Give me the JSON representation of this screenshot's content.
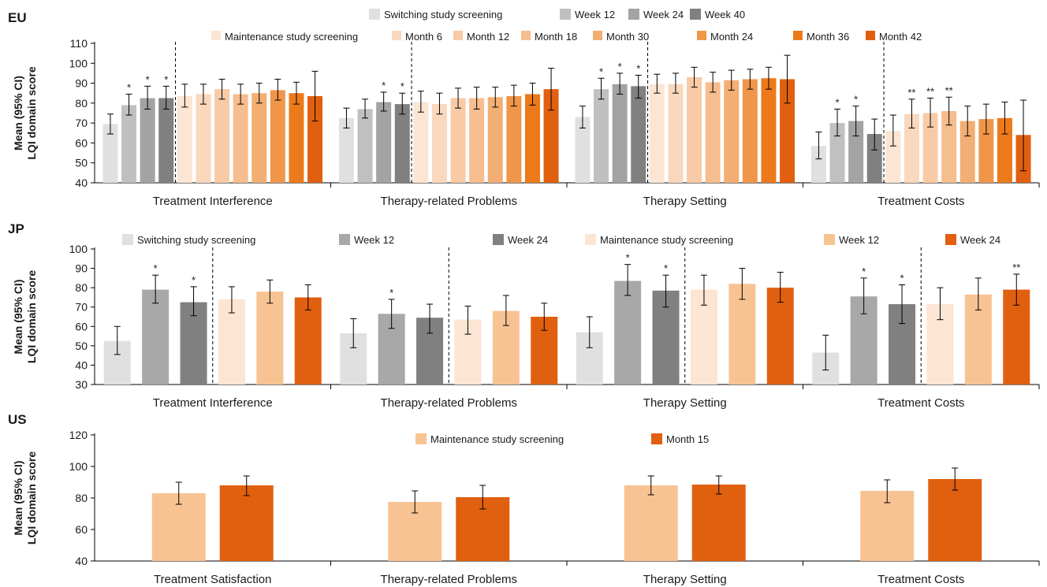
{
  "chart_data": [
    {
      "type": "bar",
      "region": "EU",
      "ylabel": [
        "Mean (95% CI)",
        "LQI domain score"
      ],
      "ylim": [
        40,
        110
      ],
      "yticks": [
        40,
        50,
        60,
        70,
        80,
        90,
        100,
        110
      ],
      "categories": [
        "Treatment Interference",
        "Therapy-related Problems",
        "Therapy Setting",
        "Treatment Costs"
      ],
      "legend_rows": [
        [
          "Switching study screening",
          "Week 12",
          "Week 24",
          "Week 40"
        ],
        [
          "Maintenance study screening",
          "Month 6",
          "Month 12",
          "Month 18",
          "Month 30",
          "Month 24",
          "Month 36",
          "Month 42"
        ]
      ],
      "split_after": 4,
      "series": [
        {
          "name": "Switching study screening",
          "color": "#e0e0e0",
          "values": [
            69.5,
            72.5,
            73,
            58.5
          ],
          "ci": [
            [
              64.5,
              74.5
            ],
            [
              67.5,
              77.5
            ],
            [
              67.5,
              78.5
            ],
            [
              52,
              65.5
            ]
          ],
          "stars": [
            "",
            "",
            "",
            ""
          ]
        },
        {
          "name": "Week 12",
          "color": "#c0c0c0",
          "values": [
            79,
            77,
            87,
            70
          ],
          "ci": [
            [
              74,
              84.5
            ],
            [
              72.5,
              82
            ],
            [
              82,
              92.5
            ],
            [
              63.5,
              77
            ]
          ],
          "stars": [
            "*",
            "",
            "*",
            "*"
          ]
        },
        {
          "name": "Week 24",
          "color": "#a3a3a3",
          "values": [
            82.5,
            80.5,
            89.5,
            71
          ],
          "ci": [
            [
              77,
              88.5
            ],
            [
              76,
              85.5
            ],
            [
              84.5,
              95
            ],
            [
              63.5,
              78.5
            ]
          ],
          "stars": [
            "*",
            "*",
            "*",
            "*"
          ]
        },
        {
          "name": "Week 40",
          "color": "#808080",
          "values": [
            82.5,
            79.5,
            88.5,
            64.5
          ],
          "ci": [
            [
              77,
              88.5
            ],
            [
              74.5,
              85
            ],
            [
              82.5,
              94
            ],
            [
              56.5,
              72
            ]
          ],
          "stars": [
            "*",
            "*",
            "*",
            ""
          ]
        },
        {
          "name": "Maintenance study screening",
          "color": "#fce5d2",
          "values": [
            83.5,
            80.5,
            89.5,
            66
          ],
          "ci": [
            [
              78,
              89.5
            ],
            [
              75.5,
              86
            ],
            [
              85,
              94.5
            ],
            [
              58.5,
              74
            ]
          ],
          "stars": [
            "",
            "",
            "",
            ""
          ]
        },
        {
          "name": "Month 6",
          "color": "#fad8bd",
          "values": [
            84.5,
            79.5,
            89.5,
            74.5
          ],
          "ci": [
            [
              79.5,
              89.5
            ],
            [
              74.5,
              85
            ],
            [
              85,
              95
            ],
            [
              67.5,
              82
            ]
          ],
          "stars": [
            "",
            "",
            "",
            "**"
          ]
        },
        {
          "name": "Month 12",
          "color": "#f8cba6",
          "values": [
            87,
            82.5,
            93,
            75
          ],
          "ci": [
            [
              82,
              92
            ],
            [
              77.5,
              87.5
            ],
            [
              88,
              98
            ],
            [
              68,
              82.5
            ]
          ],
          "stars": [
            "",
            "",
            "",
            "**"
          ]
        },
        {
          "name": "Month 18",
          "color": "#f6bd8e",
          "values": [
            84.5,
            82.5,
            90.5,
            76
          ],
          "ci": [
            [
              79.5,
              89.5
            ],
            [
              77,
              88
            ],
            [
              85.5,
              95.5
            ],
            [
              69,
              83
            ]
          ],
          "stars": [
            "",
            "",
            "",
            "**"
          ]
        },
        {
          "name": "Month 30",
          "color": "#f3ae74",
          "values": [
            85,
            83,
            91.5,
            71
          ],
          "ci": [
            [
              80,
              90
            ],
            [
              78,
              88
            ],
            [
              86.5,
              96.5
            ],
            [
              63.5,
              78.5
            ]
          ],
          "stars": [
            "",
            "",
            "",
            ""
          ]
        },
        {
          "name": "Month 24",
          "color": "#f0964a",
          "values": [
            86.5,
            83.5,
            92,
            72
          ],
          "ci": [
            [
              81.5,
              92
            ],
            [
              78.5,
              89
            ],
            [
              87,
              97
            ],
            [
              64.5,
              79.5
            ]
          ],
          "stars": [
            "",
            "",
            "",
            ""
          ]
        },
        {
          "name": "Month 36",
          "color": "#ec7a1a",
          "values": [
            85,
            84.5,
            92.5,
            72.5
          ],
          "ci": [
            [
              79.5,
              90.5
            ],
            [
              79,
              90
            ],
            [
              87,
              98
            ],
            [
              64.5,
              80.5
            ]
          ],
          "stars": [
            "",
            "",
            "",
            ""
          ]
        },
        {
          "name": "Month 42",
          "color": "#e06010",
          "values": [
            83.5,
            87,
            92,
            64
          ],
          "ci": [
            [
              71,
              96
            ],
            [
              76.5,
              97.5
            ],
            [
              80,
              104
            ],
            [
              46,
              81.5
            ]
          ],
          "stars": [
            "",
            "",
            "",
            ""
          ]
        }
      ]
    },
    {
      "type": "bar",
      "region": "JP",
      "ylabel": [
        "Mean (95% CI)",
        "LQI domain score"
      ],
      "ylim": [
        30,
        100
      ],
      "yticks": [
        30,
        40,
        50,
        60,
        70,
        80,
        90,
        100
      ],
      "categories": [
        "Treatment Interference",
        "Therapy-related Problems",
        "Therapy Setting",
        "Treatment Costs"
      ],
      "legend_rows": [
        [
          "Switching study screening",
          "Week 12",
          "Week 24",
          "Maintenance study  screening",
          "Week 12",
          "Week 24"
        ]
      ],
      "split_after": 3,
      "series": [
        {
          "name": "Switching study screening",
          "color": "#e0e0e0",
          "values": [
            52.5,
            56.5,
            57,
            46.5
          ],
          "ci": [
            [
              45.5,
              60
            ],
            [
              49,
              64
            ],
            [
              49,
              65
            ],
            [
              37.5,
              55.5
            ]
          ],
          "stars": [
            "",
            "",
            "",
            ""
          ]
        },
        {
          "name": "Week 12",
          "color": "#a8a8a8",
          "values": [
            79,
            66.5,
            83.5,
            75.5
          ],
          "ci": [
            [
              72,
              86.5
            ],
            [
              59,
              74
            ],
            [
              76,
              92
            ],
            [
              66.5,
              85
            ]
          ],
          "stars": [
            "*",
            "*",
            "*",
            "*"
          ]
        },
        {
          "name": "Week 24",
          "color": "#808080",
          "values": [
            72.5,
            64.5,
            78.5,
            71.5
          ],
          "ci": [
            [
              65.5,
              80.5
            ],
            [
              56.5,
              71.5
            ],
            [
              70,
              86.5
            ],
            [
              61.5,
              81.5
            ]
          ],
          "stars": [
            "*",
            "",
            "*",
            "*"
          ]
        },
        {
          "name": "Maintenance study  screening",
          "color": "#fce5d2",
          "values": [
            74,
            63.5,
            79,
            71.5
          ],
          "ci": [
            [
              67,
              80.5
            ],
            [
              56,
              70.5
            ],
            [
              71,
              86.5
            ],
            [
              63.5,
              80
            ]
          ],
          "stars": [
            "",
            "",
            "",
            ""
          ]
        },
        {
          "name": "Week 12",
          "color": "#f8c393",
          "values": [
            78,
            68,
            82,
            76.5
          ],
          "ci": [
            [
              72,
              84
            ],
            [
              60.5,
              76
            ],
            [
              74,
              90
            ],
            [
              68.5,
              85
            ]
          ],
          "stars": [
            "",
            "",
            "",
            ""
          ]
        },
        {
          "name": "Week 24",
          "color": "#e06010",
          "values": [
            75,
            65,
            80,
            79
          ],
          "ci": [
            [
              68.5,
              81.5
            ],
            [
              58,
              72
            ],
            [
              72.5,
              88
            ],
            [
              71,
              87
            ]
          ],
          "stars": [
            "",
            "",
            "",
            "**"
          ]
        }
      ]
    },
    {
      "type": "bar",
      "region": "US",
      "ylabel": [
        "Mean (95% CI)",
        "LQI domain score"
      ],
      "ylim": [
        40,
        120
      ],
      "yticks": [
        40,
        60,
        80,
        100,
        120
      ],
      "categories": [
        "Treatment Satisfaction",
        "Therapy-related Problems",
        "Therapy Setting",
        "Treatment Costs"
      ],
      "legend_rows": [
        [
          "Maintenance study screening",
          "Month 15"
        ]
      ],
      "split_after": 0,
      "series": [
        {
          "name": "Maintenance study screening",
          "color": "#f8c393",
          "values": [
            83,
            77.5,
            88,
            84.5
          ],
          "ci": [
            [
              76,
              90
            ],
            [
              70.5,
              84.5
            ],
            [
              82,
              94
            ],
            [
              77,
              91.5
            ]
          ],
          "stars": [
            "",
            "",
            "",
            ""
          ]
        },
        {
          "name": "Month 15",
          "color": "#e06010",
          "values": [
            88,
            80.5,
            88.5,
            92
          ],
          "ci": [
            [
              81.5,
              94
            ],
            [
              73,
              88
            ],
            [
              82.5,
              94
            ],
            [
              85,
              99
            ]
          ],
          "stars": [
            "",
            "",
            "",
            ""
          ]
        }
      ]
    }
  ]
}
